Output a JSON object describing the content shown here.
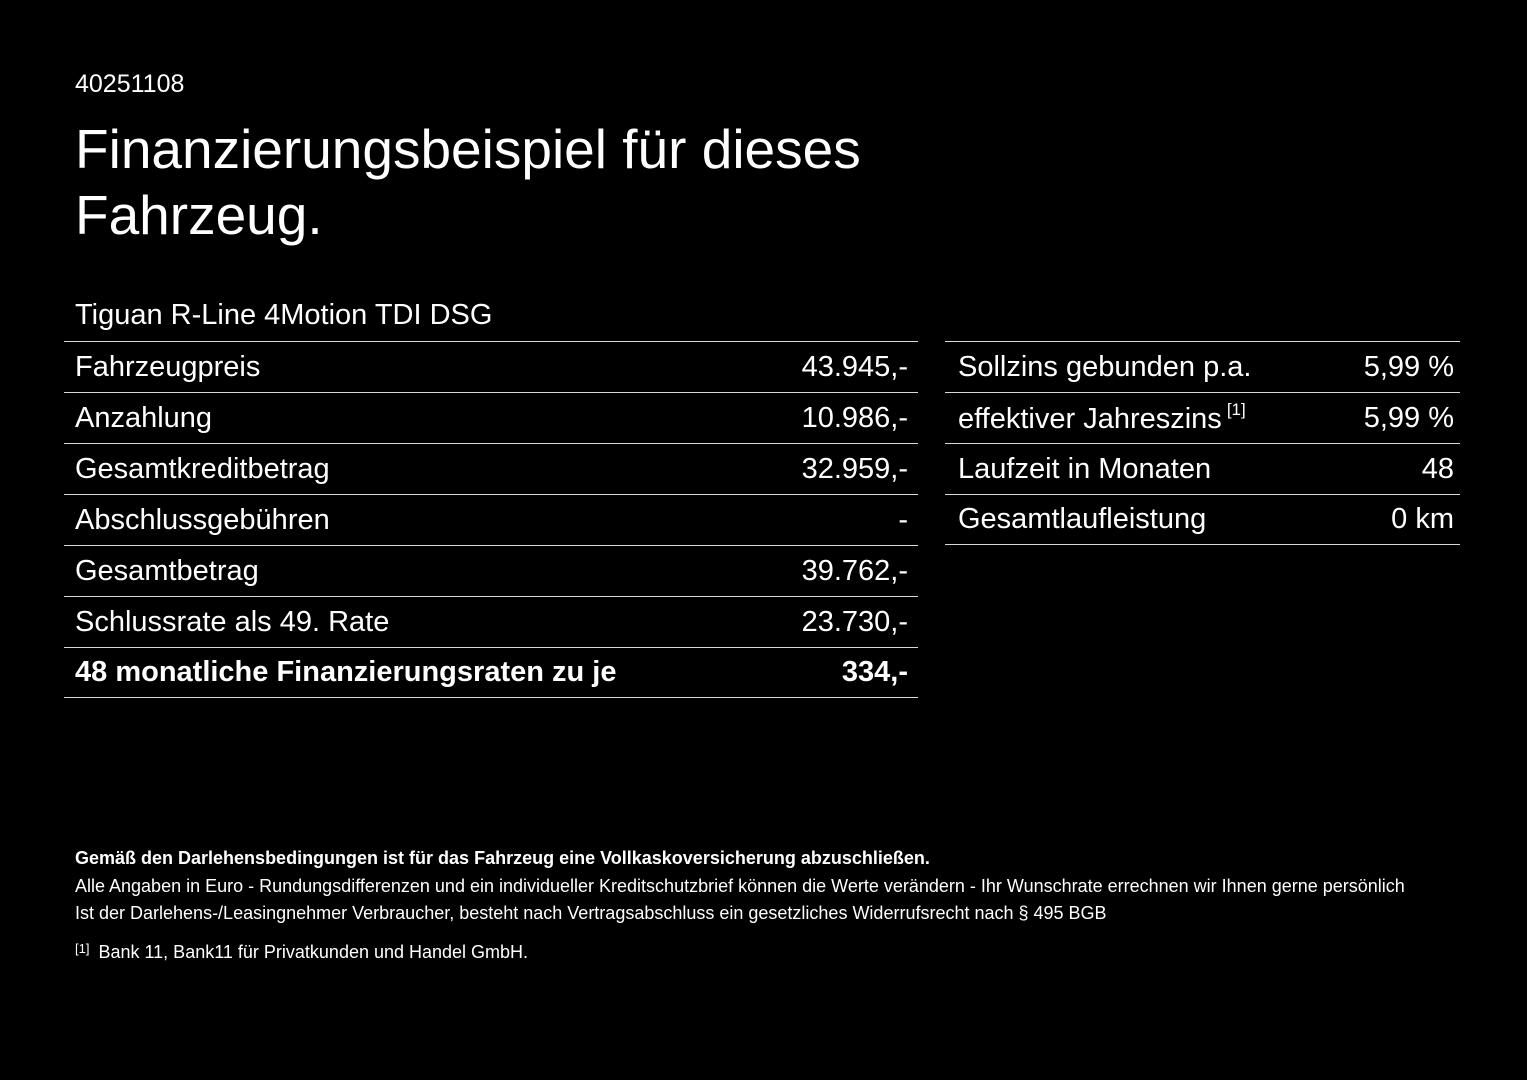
{
  "document": {
    "number": "40251108",
    "title": "Finanzierungsbeispiel für dieses Fahrzeug.",
    "vehicle": "Tiguan R-Line 4Motion TDI DSG"
  },
  "left_table": {
    "rows": [
      {
        "label": "Fahrzeugpreis",
        "value": "43.945,-"
      },
      {
        "label": "Anzahlung",
        "value": "10.986,-"
      },
      {
        "label": "Gesamtkreditbetrag",
        "value": "32.959,-"
      },
      {
        "label": "Abschlussgebühren",
        "value": "-"
      },
      {
        "label": "Gesamtbetrag",
        "value": "39.762,-"
      },
      {
        "label": "Schlussrate als 49. Rate",
        "value": "23.730,-"
      },
      {
        "label": "48 monatliche Finanzierungsraten zu je",
        "value": "334,-"
      }
    ]
  },
  "right_table": {
    "rows": [
      {
        "label": "Sollzins gebunden p.a.",
        "value": "5,99 %"
      },
      {
        "label": "effektiver Jahreszins",
        "sup": "[1]",
        "value": "5,99 %"
      },
      {
        "label": "Laufzeit in Monaten",
        "value": "48"
      },
      {
        "label": "Gesamtlaufleistung",
        "value": "0 km"
      }
    ]
  },
  "footer": {
    "bold_note": "Gemäß den Darlehensbedingungen ist für das Fahrzeug eine Vollkaskoversicherung abzuschließen.",
    "note1": "Alle Angaben in Euro - Rundungsdifferenzen und ein individueller Kreditschutzbrief können die Werte verändern - Ihr Wunschrate errechnen wir Ihnen gerne persönlich",
    "note2": "Ist der Darlehens-/Leasingnehmer Verbraucher, besteht nach Vertragsabschluss ein gesetzliches Widerrufsrecht nach § 495 BGB",
    "footnote_marker": "[1]",
    "footnote": "Bank 11, Bank11 für Privatkunden und Handel GmbH."
  },
  "colors": {
    "background": "#000000",
    "text": "#ffffff",
    "divider": "#d9d9d9"
  }
}
